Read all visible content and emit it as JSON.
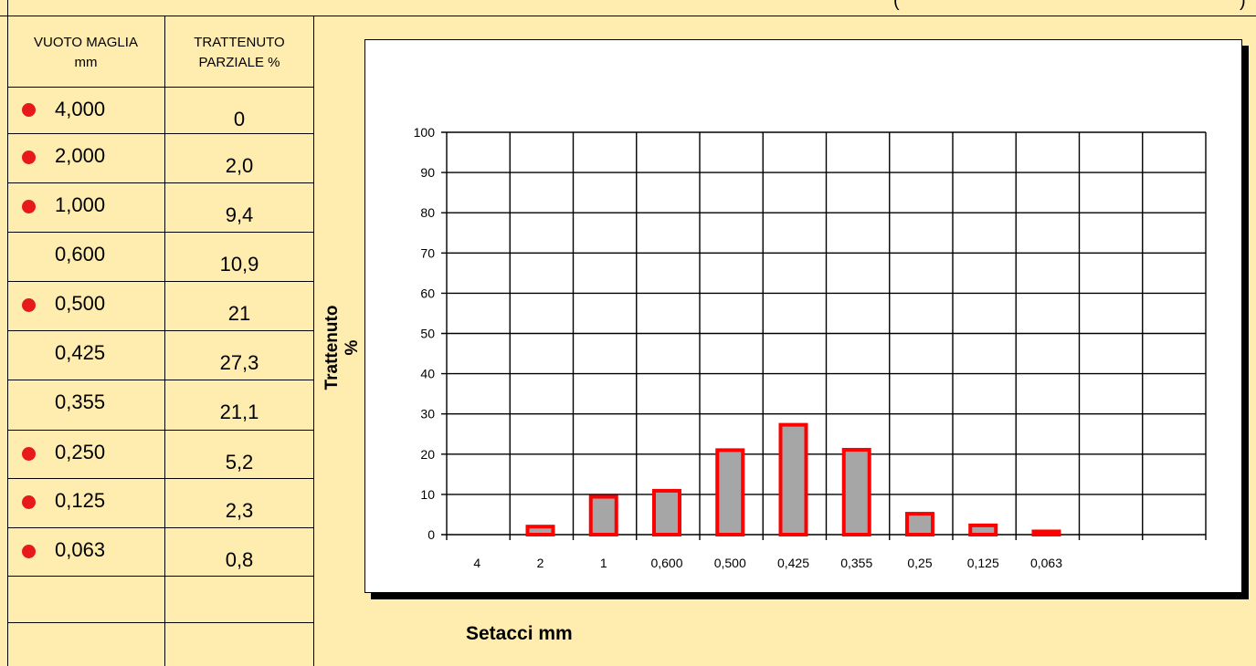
{
  "header_fragments": {
    "open_paren": "(",
    "close_paren": ")"
  },
  "table": {
    "col1_header_line1": "VUOTO MAGLIA",
    "col1_header_line2": "mm",
    "col2_header_line1": "TRATTENUTO",
    "col2_header_line2": "PARZIALE %",
    "rows": [
      {
        "sieve": "4,000",
        "value": "0",
        "marker": true
      },
      {
        "sieve": "2,000",
        "value": "2,0",
        "marker": true
      },
      {
        "sieve": "1,000",
        "value": "9,4",
        "marker": true
      },
      {
        "sieve": "0,600",
        "value": "10,9",
        "marker": false
      },
      {
        "sieve": "0,500",
        "value": "21",
        "marker": true
      },
      {
        "sieve": "0,425",
        "value": "27,3",
        "marker": false
      },
      {
        "sieve": "0,355",
        "value": "21,1",
        "marker": false
      },
      {
        "sieve": "0,250",
        "value": "5,2",
        "marker": true
      },
      {
        "sieve": "0,125",
        "value": "2,3",
        "marker": true
      },
      {
        "sieve": "0,063",
        "value": "0,8",
        "marker": true
      },
      {
        "sieve": "",
        "value": "",
        "marker": false
      },
      {
        "sieve": "",
        "value": "",
        "marker": false
      }
    ]
  },
  "colors": {
    "background": "#FFEDB0",
    "marker": "#E8191B",
    "bar_fill": "#A6A6A6",
    "bar_border": "#FF0000"
  },
  "chart_data": {
    "type": "bar",
    "ylabel_line1": "Trattenuto",
    "ylabel_line2": "%",
    "xlabel": "Setacci  mm",
    "ylim": [
      0,
      100
    ],
    "ytick_step": 10,
    "grid": true,
    "legend": "none",
    "categories": [
      "4",
      "2",
      "1",
      "0,600",
      "0,500",
      "0,425",
      "0,355",
      "0,25",
      "0,125",
      "0,063",
      "",
      "",
      ""
    ],
    "values": [
      0,
      2.0,
      9.4,
      10.9,
      21,
      27.3,
      21.1,
      5.2,
      2.3,
      0.8,
      null,
      null,
      null
    ]
  }
}
